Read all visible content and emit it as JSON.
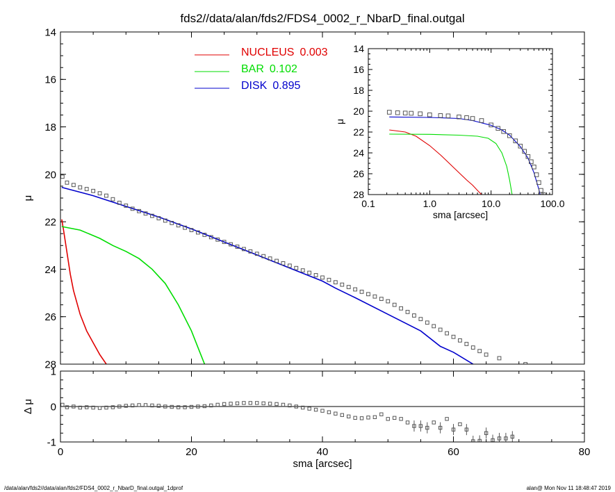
{
  "title": "fds2//data/alan/fds2/FDS4_0002_r_NbarD_final.outgal",
  "footer": {
    "left": "/data/alan/fds2//data/alan/fds2/FDS4_0002_r_NbarD_final.outgal_1dprof",
    "right": "alan@  Mon Nov 11 18:48:47 2019"
  },
  "colors": {
    "nucleus": "#e00000",
    "bar": "#00dd00",
    "disk": "#0000cc",
    "data": "#555555"
  },
  "chart_data": [
    {
      "id": "main",
      "type": "line",
      "xlabel": "",
      "ylabel": "μ",
      "xlim": [
        0,
        80
      ],
      "ylim": [
        28,
        14
      ],
      "y_inverted": true,
      "x_ticks": [
        0,
        20,
        40,
        60,
        80
      ],
      "y_ticks": [
        14,
        16,
        18,
        20,
        22,
        24,
        26,
        28
      ],
      "legend_position": "top-center",
      "series": [
        {
          "name": "NUCLEUS",
          "value_label": "0.003",
          "color": "#e00000",
          "x": [
            0.2,
            0.5,
            1,
            1.5,
            2,
            3,
            4,
            5,
            6,
            7
          ],
          "y": [
            21.9,
            22.4,
            23.3,
            24.2,
            24.9,
            25.9,
            26.6,
            27.1,
            27.6,
            28.0
          ]
        },
        {
          "name": "BAR",
          "value_label": "0.102",
          "color": "#00dd00",
          "x": [
            0.2,
            3,
            6,
            8,
            10,
            12,
            14,
            16,
            18,
            20,
            21,
            22
          ],
          "y": [
            22.2,
            22.35,
            22.7,
            23.0,
            23.25,
            23.55,
            24.0,
            24.6,
            25.5,
            26.6,
            27.3,
            28.0
          ]
        },
        {
          "name": "DISK",
          "value_label": "0.895",
          "color": "#0000cc",
          "x": [
            0.2,
            5,
            10,
            15,
            20,
            25,
            30,
            35,
            40,
            42,
            45,
            50,
            55,
            58,
            60,
            63
          ],
          "y": [
            20.55,
            20.9,
            21.35,
            21.8,
            22.3,
            22.85,
            23.4,
            23.95,
            24.5,
            24.8,
            25.2,
            25.9,
            26.6,
            27.25,
            27.5,
            28.0
          ]
        },
        {
          "name": "",
          "kind": "data",
          "color": "#555555",
          "x": [
            0.3,
            1,
            2,
            3,
            4,
            5,
            6,
            7,
            8,
            9,
            10,
            11,
            12,
            13,
            14,
            15,
            16,
            17,
            18,
            19,
            20,
            21,
            22,
            23,
            24,
            25,
            26,
            27,
            28,
            29,
            30,
            31,
            32,
            33,
            34,
            35,
            36,
            37,
            38,
            39,
            40,
            41,
            42,
            43,
            44,
            45,
            46,
            47,
            48,
            49,
            50,
            51,
            52,
            53,
            54,
            55,
            56,
            57,
            58,
            59,
            60,
            61,
            62,
            63,
            64,
            65,
            67,
            71
          ],
          "y": [
            20.1,
            20.35,
            20.45,
            20.55,
            20.62,
            20.7,
            20.8,
            20.9,
            21.05,
            21.2,
            21.32,
            21.45,
            21.55,
            21.65,
            21.75,
            21.85,
            21.95,
            22.05,
            22.15,
            22.25,
            22.35,
            22.45,
            22.55,
            22.65,
            22.75,
            22.85,
            22.95,
            23.05,
            23.15,
            23.25,
            23.35,
            23.45,
            23.55,
            23.65,
            23.75,
            23.85,
            23.95,
            24.05,
            24.15,
            24.25,
            24.35,
            24.45,
            24.55,
            24.65,
            24.75,
            24.85,
            24.95,
            25.05,
            25.15,
            25.25,
            25.35,
            25.5,
            25.65,
            25.8,
            25.95,
            26.1,
            26.25,
            26.4,
            26.55,
            26.7,
            26.85,
            27.0,
            27.15,
            27.3,
            27.45,
            27.6,
            27.75,
            28.0
          ]
        }
      ]
    },
    {
      "id": "residual",
      "type": "scatter",
      "xlabel": "sma [arcsec]",
      "ylabel": "Δ μ",
      "xlim": [
        0,
        80
      ],
      "ylim": [
        -1,
        1
      ],
      "x_ticks": [
        0,
        20,
        40,
        60,
        80
      ],
      "y_ticks": [
        -1,
        0,
        1
      ],
      "zero_line": true,
      "series": [
        {
          "name": "",
          "color": "#555555",
          "x": [
            0.3,
            1,
            2,
            3,
            4,
            5,
            6,
            7,
            8,
            9,
            10,
            11,
            12,
            13,
            14,
            15,
            16,
            17,
            18,
            19,
            20,
            21,
            22,
            23,
            24,
            25,
            26,
            27,
            28,
            29,
            30,
            31,
            32,
            33,
            34,
            35,
            36,
            37,
            38,
            39,
            40,
            41,
            42,
            43,
            44,
            45,
            46,
            47,
            48,
            49,
            50,
            51,
            52,
            53,
            54,
            55,
            56,
            57,
            58,
            59,
            60,
            61,
            62,
            63,
            64,
            65,
            66,
            67,
            68,
            69
          ],
          "y": [
            0.05,
            -0.02,
            0.0,
            -0.03,
            -0.02,
            -0.03,
            -0.04,
            -0.03,
            -0.02,
            0.0,
            0.02,
            0.03,
            0.04,
            0.04,
            0.03,
            0.02,
            0.0,
            -0.01,
            -0.02,
            -0.02,
            -0.01,
            0.0,
            0.01,
            0.03,
            0.05,
            0.07,
            0.08,
            0.09,
            0.1,
            0.1,
            0.1,
            0.09,
            0.08,
            0.07,
            0.05,
            0.03,
            0.0,
            -0.03,
            -0.06,
            -0.09,
            -0.12,
            -0.16,
            -0.2,
            -0.24,
            -0.28,
            -0.32,
            -0.33,
            -0.31,
            -0.3,
            -0.22,
            -0.35,
            -0.32,
            -0.35,
            -0.45,
            -0.55,
            -0.55,
            -0.6,
            -0.45,
            -0.6,
            -0.35,
            -0.65,
            -0.5,
            -0.65,
            -0.98,
            -0.97,
            -0.75,
            -0.95,
            -0.9,
            -0.9,
            -0.85
          ]
        }
      ]
    },
    {
      "id": "inset",
      "type": "line",
      "xlabel": "sma [arcsec]",
      "ylabel": "μ",
      "x_log": true,
      "xlim": [
        0.1,
        100
      ],
      "ylim": [
        28,
        14
      ],
      "y_inverted": true,
      "x_ticks": [
        0.1,
        1.0,
        10.0,
        100.0
      ],
      "x_tick_labels": [
        "0.1",
        "1.0",
        "10.0",
        "100.0"
      ],
      "y_ticks": [
        14,
        16,
        18,
        20,
        22,
        24,
        26,
        28
      ],
      "series": [
        {
          "name": "NUCLEUS",
          "color": "#e00000",
          "x": [
            0.22,
            0.3,
            0.4,
            0.6,
            1.0,
            1.5,
            2,
            3,
            4,
            5,
            6,
            7
          ],
          "y": [
            21.8,
            21.9,
            22.0,
            22.4,
            23.3,
            24.2,
            24.9,
            25.9,
            26.6,
            27.1,
            27.6,
            28.0
          ]
        },
        {
          "name": "BAR",
          "color": "#00dd00",
          "x": [
            0.22,
            1,
            3,
            6,
            9,
            12,
            15,
            18,
            20,
            21,
            22
          ],
          "y": [
            22.2,
            22.22,
            22.3,
            22.4,
            22.6,
            23.1,
            24.0,
            25.3,
            26.6,
            27.3,
            28.0
          ]
        },
        {
          "name": "DISK",
          "color": "#0000cc",
          "x": [
            0.22,
            1,
            3,
            5,
            10,
            15,
            20,
            30,
            40,
            50,
            60,
            63
          ],
          "y": [
            20.55,
            20.6,
            20.7,
            20.9,
            21.35,
            21.8,
            22.3,
            23.4,
            24.5,
            25.9,
            27.5,
            28.0
          ]
        },
        {
          "name": "",
          "kind": "data",
          "color": "#555555",
          "x": [
            0.22,
            0.3,
            0.4,
            0.5,
            0.7,
            1,
            1.5,
            2,
            3,
            4,
            5,
            7,
            10,
            13,
            16,
            20,
            25,
            30,
            35,
            40,
            45,
            50,
            55,
            60,
            65,
            71
          ],
          "y": [
            20.1,
            20.15,
            20.18,
            20.2,
            20.25,
            20.35,
            20.42,
            20.45,
            20.55,
            20.62,
            20.7,
            20.9,
            21.32,
            21.65,
            21.95,
            22.35,
            22.85,
            23.35,
            23.85,
            24.35,
            24.85,
            25.35,
            26.1,
            26.85,
            27.6,
            28.0
          ]
        }
      ]
    }
  ]
}
